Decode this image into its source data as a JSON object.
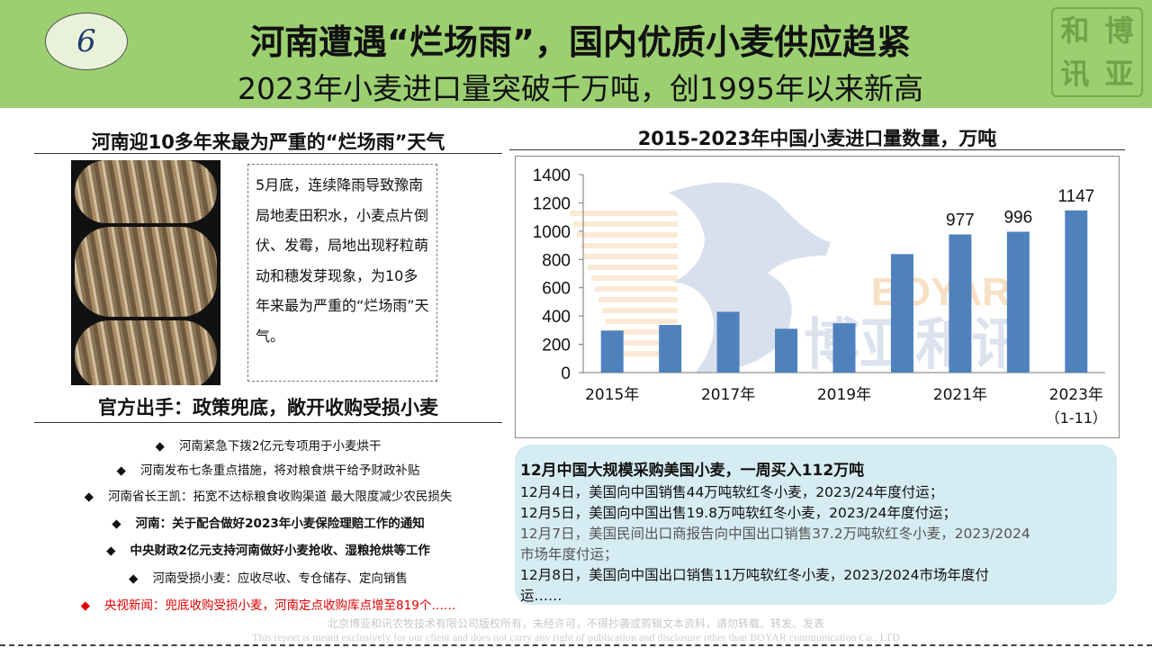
{
  "header": {
    "slide_number": "6",
    "title": "河南遭遇“烂场雨”，国内优质小麦供应趋紧",
    "subtitle": "2023年小麦进口量突破千万吨，创1995年以来新高",
    "logo_chars": [
      "博",
      "和",
      "亚",
      "讯"
    ],
    "bg_color": "#9bcf70"
  },
  "left": {
    "section1_title": "河南迎10多年来最为严重的“烂场雨”天气",
    "description": "5月底，连续降雨导致豫南局地麦田积水，小麦点片倒伏、发霉，局地出现籽粒萌动和穗发芽现象，为10多年来最为严重的“烂场雨”天气。",
    "section2_title": "官方出手：政策兜底，敞开收购受损小麦",
    "bullets": [
      {
        "text": "河南紧急下拨2亿元专项用于小麦烘干",
        "style": "normal"
      },
      {
        "text": "河南发布七条重点措施，将对粮食烘干给予财政补贴",
        "style": "normal"
      },
      {
        "text": "河南省长王凯：拓宽不达标粮食收购渠道 最大限度减少农民损失",
        "style": "normal"
      },
      {
        "text": "河南：关于配合做好2023年小麦保险理赔工作的通知",
        "style": "bold"
      },
      {
        "text": "中央财政2亿元支持河南做好小麦抢收、湿粮抢烘等工作",
        "style": "bold"
      },
      {
        "text": "河南受损小麦：应收尽收、专仓储存、定向销售",
        "style": "normal"
      },
      {
        "text": "央视新闻：兜底收购受损小麦，河南定点收购库点增至819个……",
        "style": "red"
      }
    ],
    "bullet_symbol": "◆"
  },
  "chart_title": "2015-2023年中国小麦进口量数量，万吨",
  "chart_data": {
    "type": "bar",
    "title": "2015-2023年中国小麦进口量数量，万吨",
    "categories": [
      "2015",
      "2016",
      "2017",
      "2018",
      "2019",
      "2020",
      "2021",
      "2022",
      "2023"
    ],
    "x_tick_labels": [
      "2015年",
      "2017年",
      "2019年",
      "2021年",
      "2023年"
    ],
    "x_tick_note": "（1-11）",
    "values": [
      297,
      337,
      430,
      310,
      349,
      838,
      977,
      996,
      1147
    ],
    "data_labels": {
      "2021": "977",
      "2022": "996",
      "2023": "1147"
    },
    "ylim": [
      0,
      1400
    ],
    "y_ticks": [
      "0",
      "200",
      "400",
      "600",
      "800",
      "1000",
      "1200",
      "1400"
    ],
    "bar_color": "#4f81bd",
    "watermark_text": "BOYAR",
    "watermark_cn": "博亚和讯",
    "grid": false
  },
  "news": {
    "title": "12月中国大规模采购美国小麦，一周买入112万吨",
    "lines": [
      {
        "text": "12月4日，美国向中国销售44万吨软红冬小麦，2023/24年度付运；",
        "style": "normal"
      },
      {
        "text": "12月5日，美国向中国出售19.8万吨软红冬小麦，2023/24年度付运；",
        "style": "normal"
      },
      {
        "text": "12月7日，美国民间出口商报告向中国出口销售37.2万吨软红冬小麦，2023/2024",
        "style": "gray"
      },
      {
        "text": "市场年度付运；",
        "style": "gray"
      },
      {
        "text": "12月8日，美国向中国出口销售11万吨软红冬小麦，2023/2024市场年度付",
        "style": "normal"
      },
      {
        "text": "运……",
        "style": "normal"
      }
    ]
  },
  "footer": {
    "line1": "北京博亚和讯农牧技术有限公司版权所有，未经许可，不得抄袭或剪辑文本资料，请勿转载、转发、发表",
    "line2": "This report is meant exclusively for our client and does not carry any right of publication and disclosure other than BOYAR communication Co., LTD"
  }
}
